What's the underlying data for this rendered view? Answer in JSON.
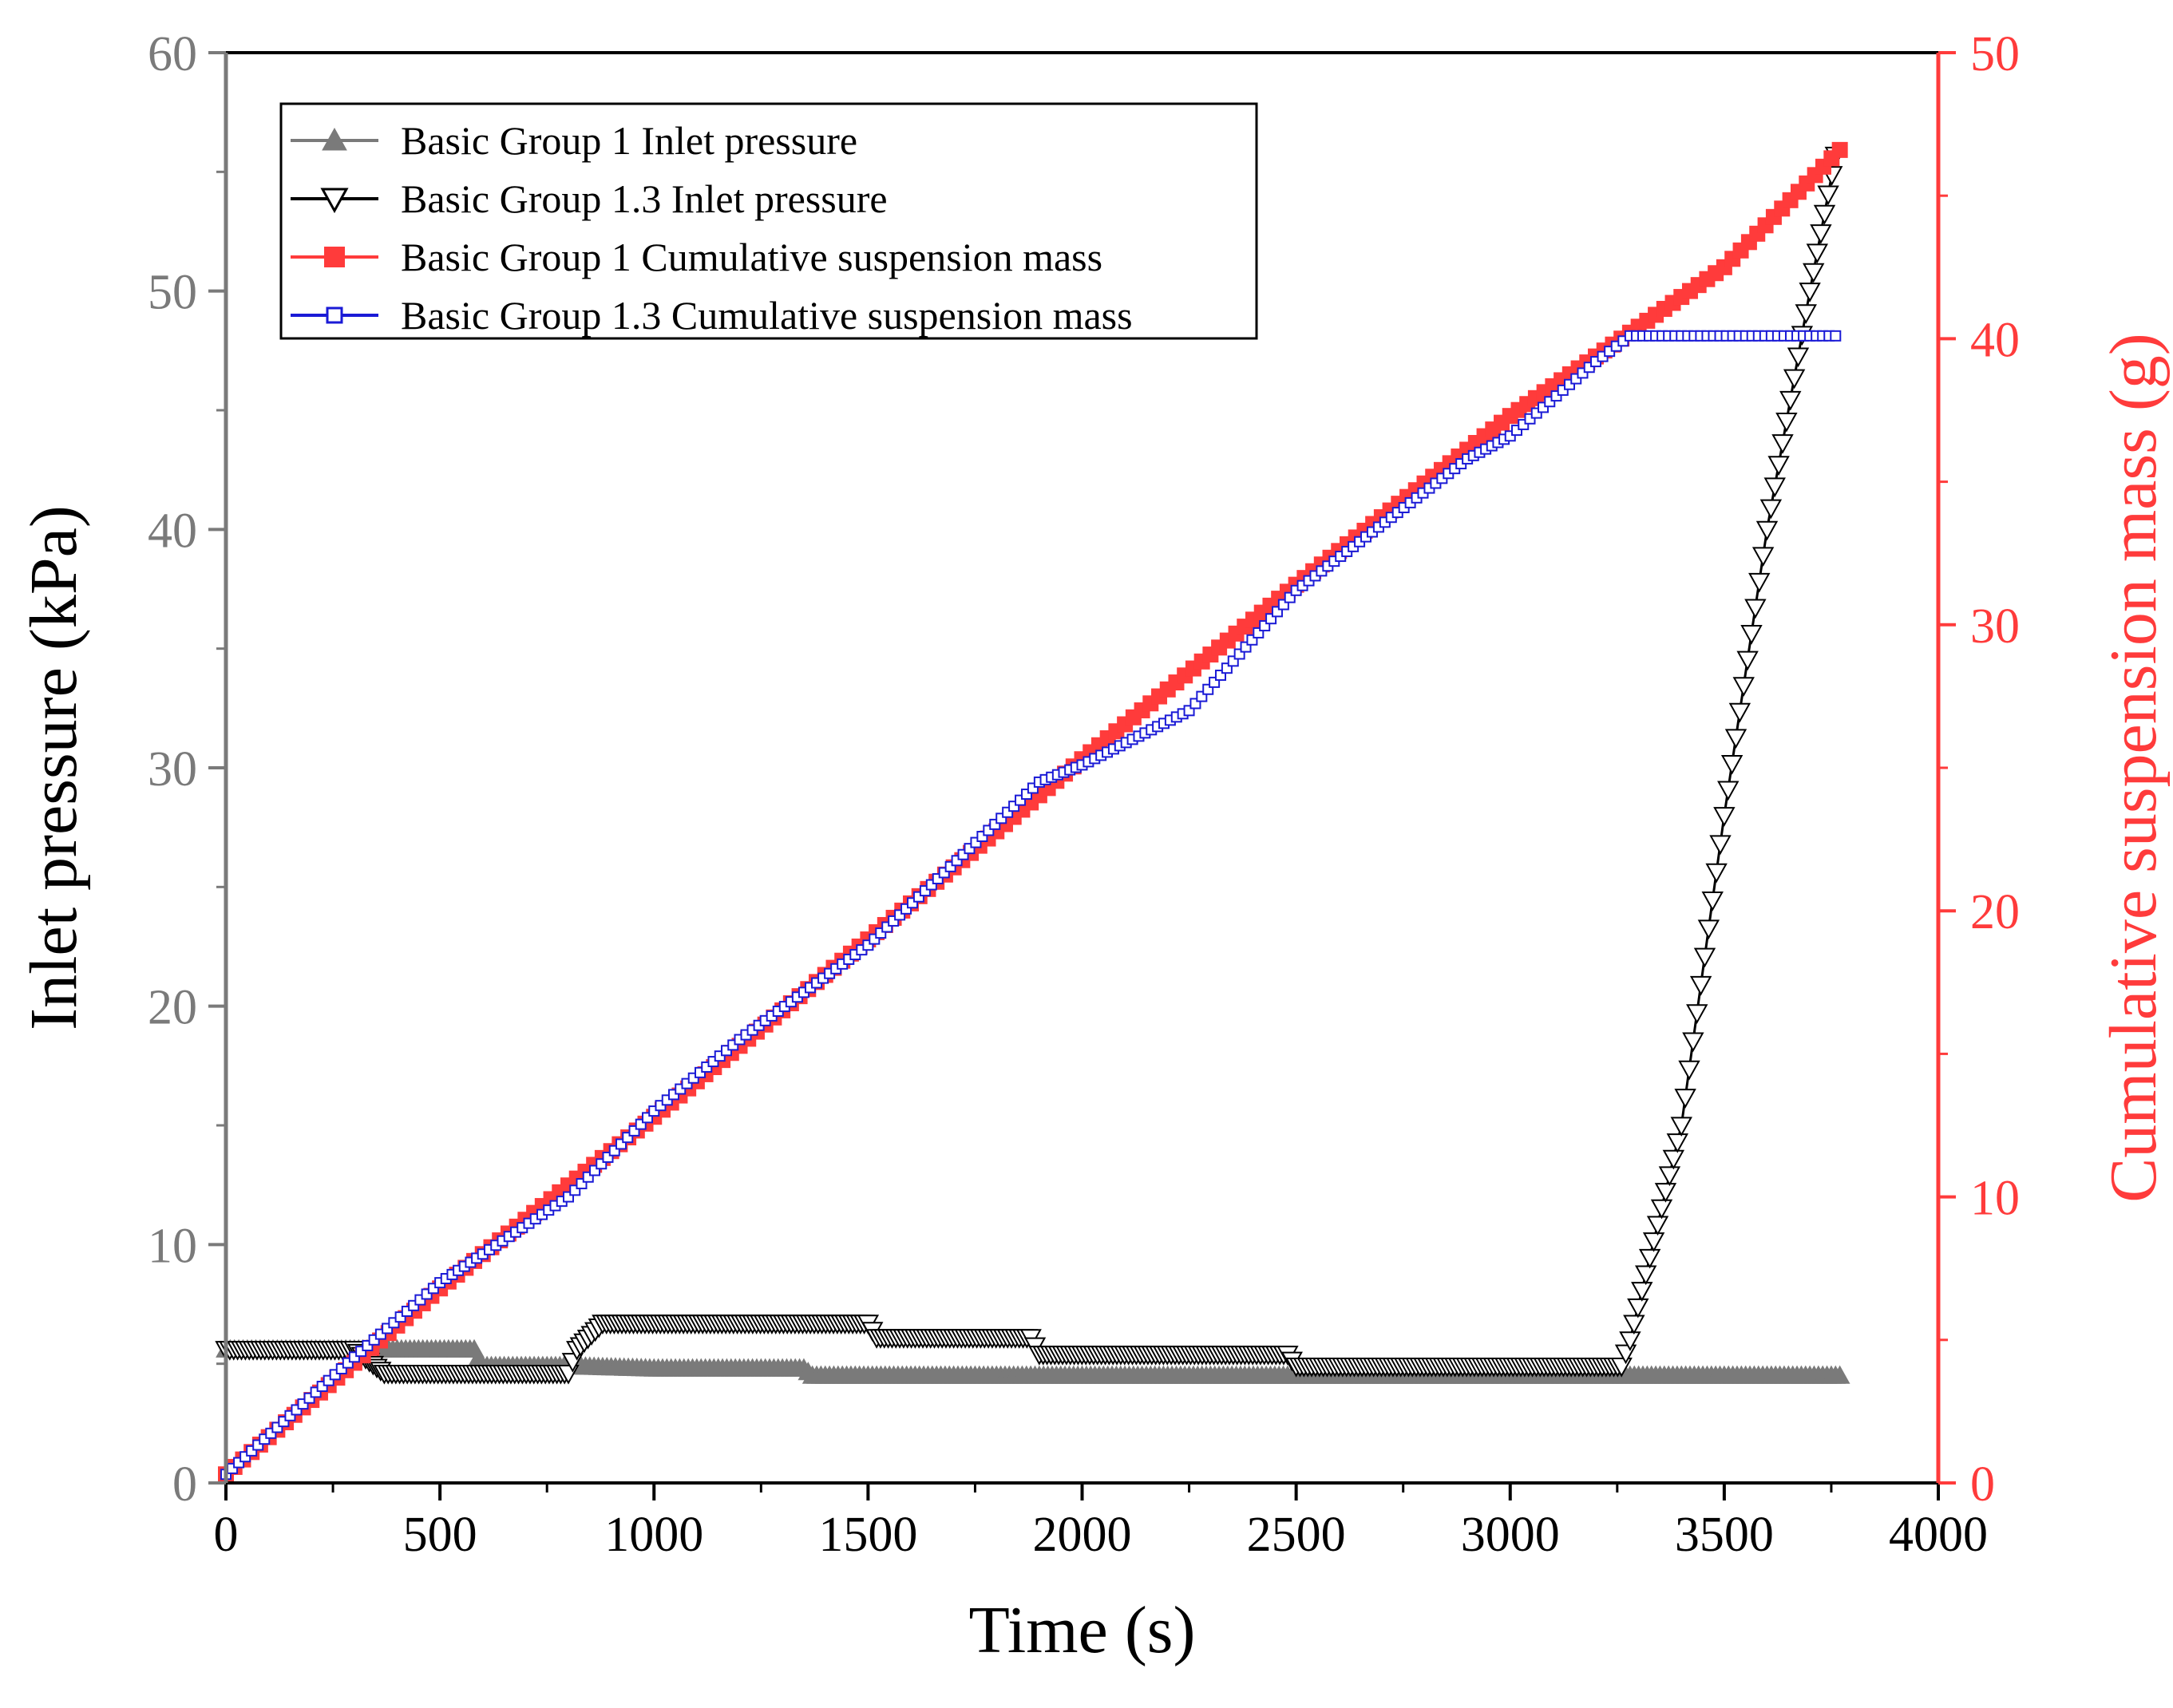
{
  "chart_data": {
    "type": "line",
    "title": "",
    "xlabel": "Time (s)",
    "ylabel_left": "Inlet pressure (kPa)",
    "ylabel_right": "Cumulative suspension mass (g)",
    "xlim": [
      0,
      4000
    ],
    "ylim_left": [
      0,
      60
    ],
    "ylim_right": [
      0,
      50
    ],
    "x_ticks": [
      "0",
      "500",
      "1000",
      "1500",
      "2000",
      "2500",
      "3000",
      "3500",
      "4000"
    ],
    "y_left_ticks": [
      "0",
      "10",
      "20",
      "30",
      "40",
      "50",
      "60"
    ],
    "y_right_ticks": [
      "0",
      "10",
      "20",
      "30",
      "40",
      "50"
    ],
    "grid": false,
    "legend_position": "top-left",
    "colors": {
      "axis_left": "#7a7a7a",
      "axis_right": "#ff3b3b",
      "axis_bottom": "#000000",
      "pressure_g1": "#7a7a7a",
      "pressure_g13": "#000000",
      "mass_g1": "#ff3b3b",
      "mass_g13": "#1a1ad6"
    },
    "series": [
      {
        "name": "Basic Group 1 Inlet pressure",
        "axis": "left",
        "marker": "triangle-up",
        "points": [
          [
            0,
            5.6
          ],
          [
            50,
            5.6
          ],
          [
            300,
            5.6
          ],
          [
            580,
            5.6
          ],
          [
            600,
            4.9
          ],
          [
            800,
            4.9
          ],
          [
            1000,
            4.8
          ],
          [
            1350,
            4.8
          ],
          [
            1370,
            4.5
          ],
          [
            2000,
            4.5
          ],
          [
            2500,
            4.5
          ],
          [
            3000,
            4.5
          ],
          [
            3500,
            4.5
          ],
          [
            3770,
            4.5
          ]
        ]
      },
      {
        "name": "Basic Group 1.3 Inlet pressure",
        "axis": "left",
        "marker": "triangle-down",
        "points": [
          [
            0,
            5.6
          ],
          [
            300,
            5.6
          ],
          [
            370,
            4.6
          ],
          [
            800,
            4.6
          ],
          [
            820,
            5.6
          ],
          [
            880,
            6.7
          ],
          [
            1500,
            6.7
          ],
          [
            1520,
            6.1
          ],
          [
            1880,
            6.1
          ],
          [
            1900,
            5.4
          ],
          [
            2480,
            5.4
          ],
          [
            2500,
            4.9
          ],
          [
            3260,
            4.9
          ],
          [
            3280,
            6.0
          ],
          [
            3400,
            15.0
          ],
          [
            3500,
            28.0
          ],
          [
            3600,
            40.0
          ],
          [
            3700,
            50.0
          ],
          [
            3760,
            55.7
          ]
        ]
      },
      {
        "name": "Basic Group 1 Cumulative suspension mass",
        "axis": "right",
        "marker": "square-filled",
        "points": [
          [
            0,
            0.3
          ],
          [
            500,
            6.8
          ],
          [
            1000,
            12.8
          ],
          [
            1500,
            19.0
          ],
          [
            2000,
            25.3
          ],
          [
            2500,
            31.4
          ],
          [
            3000,
            37.3
          ],
          [
            3500,
            42.5
          ],
          [
            3770,
            46.6
          ]
        ]
      },
      {
        "name": "Basic Group 1.3 Cumulative suspension mass",
        "axis": "right",
        "marker": "square-open",
        "points": [
          [
            0,
            0.3
          ],
          [
            300,
            4.4
          ],
          [
            500,
            7.0
          ],
          [
            600,
            8.0
          ],
          [
            800,
            10.0
          ],
          [
            1000,
            13.0
          ],
          [
            1200,
            15.5
          ],
          [
            1500,
            18.8
          ],
          [
            1900,
            24.5
          ],
          [
            2000,
            25.1
          ],
          [
            2250,
            27.0
          ],
          [
            2500,
            31.2
          ],
          [
            2900,
            35.8
          ],
          [
            3000,
            36.6
          ],
          [
            3200,
            39.2
          ],
          [
            3280,
            40.1
          ],
          [
            3760,
            40.1
          ]
        ]
      }
    ]
  }
}
